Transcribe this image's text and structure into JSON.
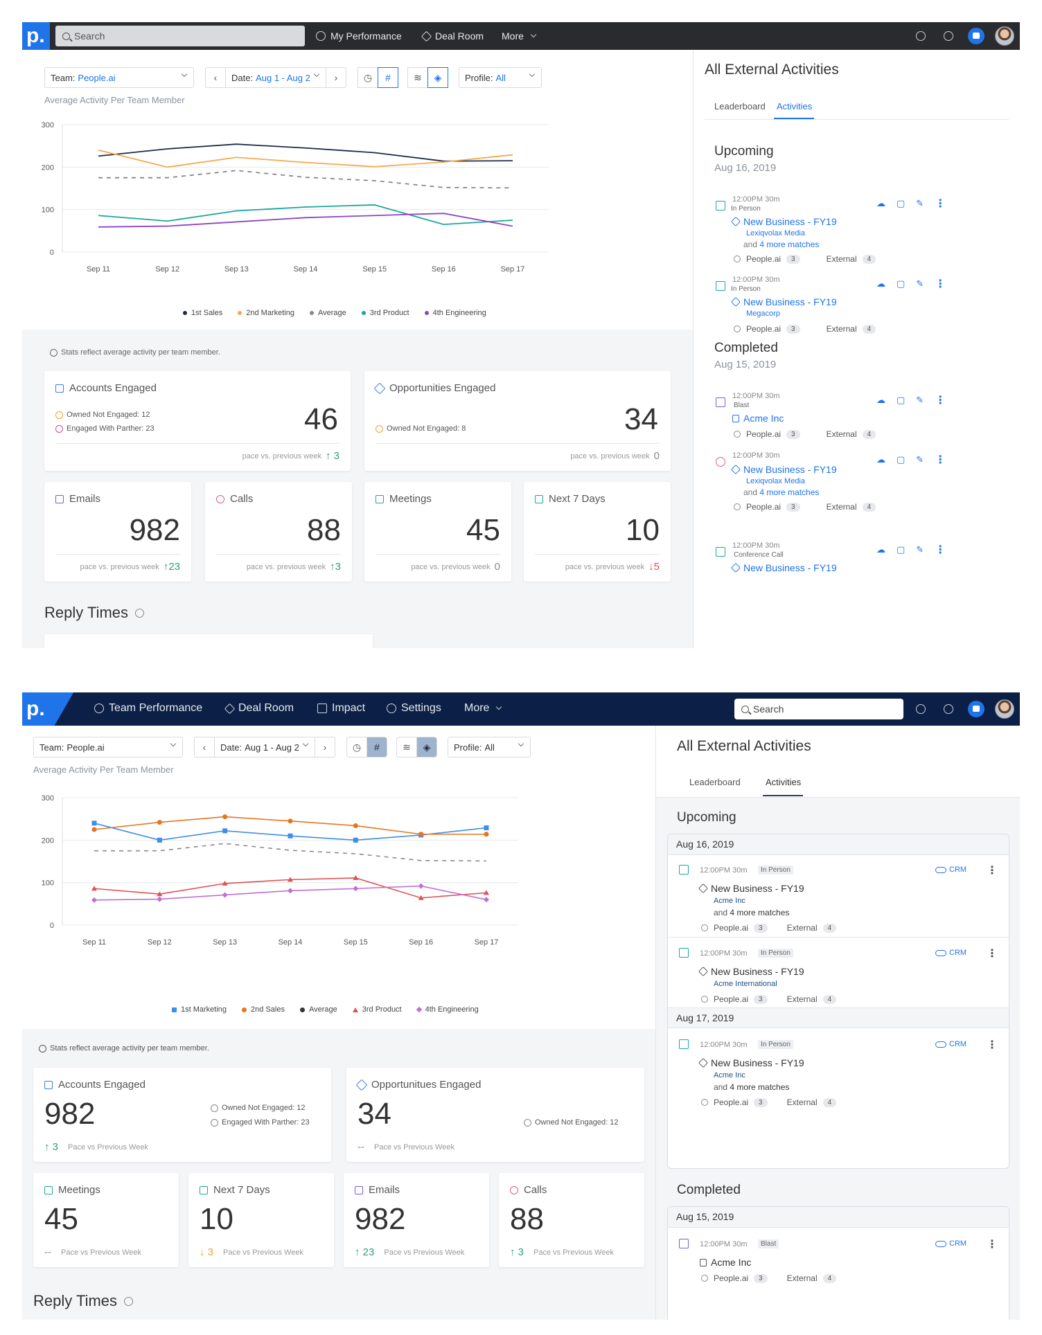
{
  "v1": {
    "search_placeholder": "Search",
    "nav": [
      "My Performance",
      "Deal Room",
      "More"
    ],
    "filters": {
      "team_label": "Team:",
      "team_value": "People.ai",
      "date_label": "Date:",
      "date_value": "Aug 1 - Aug 2",
      "profile_label": "Profile:",
      "profile_value": "All"
    },
    "subtitle": "Average Activity Per Team Member",
    "legend": [
      "1st Sales",
      "2nd Marketing",
      "Average",
      "3rd Product",
      "4th Engineering"
    ],
    "stats_note": "Stats reflect average activity per team member.",
    "cards": {
      "accounts": {
        "title": "Accounts Engaged",
        "value": "46",
        "line1": "Owned Not Engaged: 12",
        "line2": "Engaged With Parther: 23",
        "pace": "pace vs. previous week",
        "delta": "3"
      },
      "opps": {
        "title": "Opportunities Engaged",
        "value": "34",
        "line1": "Owned Not Engaged: 8",
        "pace": "pace vs. previous week",
        "delta": "0"
      },
      "emails": {
        "title": "Emails",
        "value": "982",
        "pace": "pace vs. previous week",
        "delta": "23"
      },
      "calls": {
        "title": "Calls",
        "value": "88",
        "pace": "pace vs. previous week",
        "delta": "3"
      },
      "meetings": {
        "title": "Meetings",
        "value": "45",
        "pace": "pace vs. previous week",
        "delta": "0"
      },
      "next7": {
        "title": "Next 7 Days",
        "value": "10",
        "pace": "pace vs. previous week",
        "delta": "5"
      }
    },
    "reply_times": "Reply Times",
    "right": {
      "title": "All External Activities",
      "tabs": [
        "Leaderboard",
        "Activities"
      ],
      "upcoming": "Upcoming",
      "upcoming_date": "Aug 16, 2019",
      "completed": "Completed",
      "completed_date": "Aug 15, 2019",
      "acts": [
        {
          "time": "12:00PM  30m",
          "kind": "In Person",
          "deal": "New Business - FY19",
          "acct": "Lexiqvolax Media",
          "more_pre": "and",
          "more": "4 more matches",
          "ppl": "People.ai",
          "ppl_n": "3",
          "ext": "External",
          "ext_n": "4"
        },
        {
          "time": "12:00PM  30m",
          "kind": "In Person",
          "deal": "New Business - FY19",
          "acct": "Megacorp",
          "ppl": "People.ai",
          "ppl_n": "3",
          "ext": "External",
          "ext_n": "4"
        },
        {
          "time": "12:00PM  30m",
          "kind": "Blast",
          "deal": "Acme Inc",
          "ppl": "People.ai",
          "ppl_n": "3",
          "ext": "External",
          "ext_n": "4"
        },
        {
          "time": "12:00PM  30m",
          "deal": "New Business - FY19",
          "acct": "Lexiqvolax Media",
          "more_pre": "and",
          "more": "4 more matches",
          "ppl": "People.ai",
          "ppl_n": "3",
          "ext": "External",
          "ext_n": "4"
        },
        {
          "time": "12:00PM  30m",
          "kind": "Conference Call",
          "deal": "New Business - FY19"
        }
      ]
    }
  },
  "v2": {
    "nav": [
      "Team Performance",
      "Deal Room",
      "Impact",
      "Settings",
      "More"
    ],
    "search_placeholder": "Search",
    "filters": {
      "team_label": "Team:",
      "team_value": "People.ai",
      "date_label": "Date:",
      "date_value": "Aug 1 - Aug 2",
      "profile_label": "Profile:",
      "profile_value": "All"
    },
    "subtitle": "Average Activity Per Team Member",
    "legend": [
      "1st Marketing",
      "2nd Sales",
      "Average",
      "3rd Product",
      "4th Engineering"
    ],
    "stats_note": "Stats reflect average activity per team member.",
    "cards": {
      "accounts": {
        "title": "Accounts Engaged",
        "value": "982",
        "line1": "Owned Not Engaged: 12",
        "line2": "Engaged With Parther: 23",
        "pace": "Pace vs Previous Week",
        "delta": "3"
      },
      "opps": {
        "title": "Opportunitues Engaged",
        "value": "34",
        "line1": "Owned Not Engaged: 12",
        "pace": "Pace vs Previous Week",
        "delta": "--"
      },
      "meetings": {
        "title": "Meetings",
        "value": "45",
        "pace": "Pace vs Previous Week",
        "delta": "--"
      },
      "next7": {
        "title": "Next 7 Days",
        "value": "10",
        "pace": "Pace vs Previous Week",
        "delta": "3"
      },
      "emails": {
        "title": "Emails",
        "value": "982",
        "pace": "Pace vs Previous Week",
        "delta": "23"
      },
      "calls": {
        "title": "Calls",
        "value": "88",
        "pace": "Pace vs Previous Week",
        "delta": "3"
      }
    },
    "reply_times": "Reply Times",
    "right": {
      "title": "All External Activities",
      "tabs": [
        "Leaderboard",
        "Activities"
      ],
      "upcoming": "Upcoming",
      "date1": "Aug 16, 2019",
      "date2": "Aug 17, 2019",
      "completed": "Completed",
      "date3": "Aug 15, 2019",
      "crm": "CRM",
      "acts": [
        {
          "time": "12:00PM  30m",
          "kind": "In Person",
          "deal": "New Business - FY19",
          "acct": "Acme Inc",
          "more_pre": "and",
          "more": "4 more matches",
          "ppl": "People.ai",
          "ppl_n": "3",
          "ext": "External",
          "ext_n": "4"
        },
        {
          "time": "12:00PM  30m",
          "kind": "In Person",
          "deal": "New Business - FY19",
          "acct": "Acme International",
          "ppl": "People.ai",
          "ppl_n": "3",
          "ext": "External",
          "ext_n": "4"
        },
        {
          "time": "12:00PM  30m",
          "kind": "In Person",
          "deal": "New Business - FY19",
          "acct": "Acme Inc",
          "more_pre": "and",
          "more": "4 more matches",
          "ppl": "People.ai",
          "ppl_n": "3",
          "ext": "External",
          "ext_n": "4"
        },
        {
          "time": "12:00PM  30m",
          "kind": "Blast",
          "deal": "Acme Inc",
          "ppl": "People.ai",
          "ppl_n": "3",
          "ext": "External",
          "ext_n": "4"
        }
      ]
    }
  },
  "chart_data": [
    {
      "type": "line",
      "categories": [
        "Sep 11",
        "Sep 12",
        "Sep 13",
        "Sep 14",
        "Sep 15",
        "Sep 16",
        "Sep 17"
      ],
      "ylim": [
        0,
        300
      ],
      "yticks": [
        0,
        100,
        200,
        300
      ],
      "title": "",
      "series": [
        {
          "name": "1st Sales",
          "color": "#1c2b4a",
          "values": [
            226,
            243,
            254,
            245,
            234,
            214,
            215
          ]
        },
        {
          "name": "2nd Marketing",
          "color": "#f4a94a",
          "values": [
            240,
            200,
            223,
            211,
            201,
            212,
            229
          ]
        },
        {
          "name": "Average",
          "color": "#888888",
          "dashed": true,
          "values": [
            175,
            175,
            192,
            176,
            168,
            152,
            151
          ]
        },
        {
          "name": "3rd Product",
          "color": "#1aa69a",
          "values": [
            86,
            73,
            97,
            106,
            111,
            65,
            75
          ]
        },
        {
          "name": "4th Engineering",
          "color": "#8e44c2",
          "values": [
            59,
            61,
            71,
            81,
            86,
            91,
            61
          ]
        }
      ]
    },
    {
      "type": "line",
      "categories": [
        "Sep 11",
        "Sep 12",
        "Sep 13",
        "Sep 14",
        "Sep 15",
        "Sep 16",
        "Sep 17"
      ],
      "ylim": [
        0,
        300
      ],
      "yticks": [
        0,
        100,
        200,
        300
      ],
      "title": "",
      "series": [
        {
          "name": "1st Marketing",
          "color": "#3d8ee8",
          "marker": "square",
          "values": [
            240,
            200,
            222,
            210,
            200,
            212,
            229
          ]
        },
        {
          "name": "2nd Sales",
          "color": "#e8741e",
          "marker": "circle",
          "values": [
            225,
            242,
            255,
            245,
            234,
            214,
            214
          ]
        },
        {
          "name": "Average",
          "color": "#888888",
          "dashed": true,
          "marker": "none",
          "values": [
            175,
            175,
            192,
            176,
            168,
            152,
            151
          ]
        },
        {
          "name": "3rd Product",
          "color": "#e05050",
          "marker": "triangle",
          "values": [
            86,
            73,
            98,
            107,
            111,
            64,
            76
          ]
        },
        {
          "name": "4th Engineering",
          "color": "#c06ed6",
          "marker": "diamond",
          "values": [
            59,
            61,
            71,
            81,
            86,
            92,
            60
          ]
        }
      ]
    }
  ]
}
